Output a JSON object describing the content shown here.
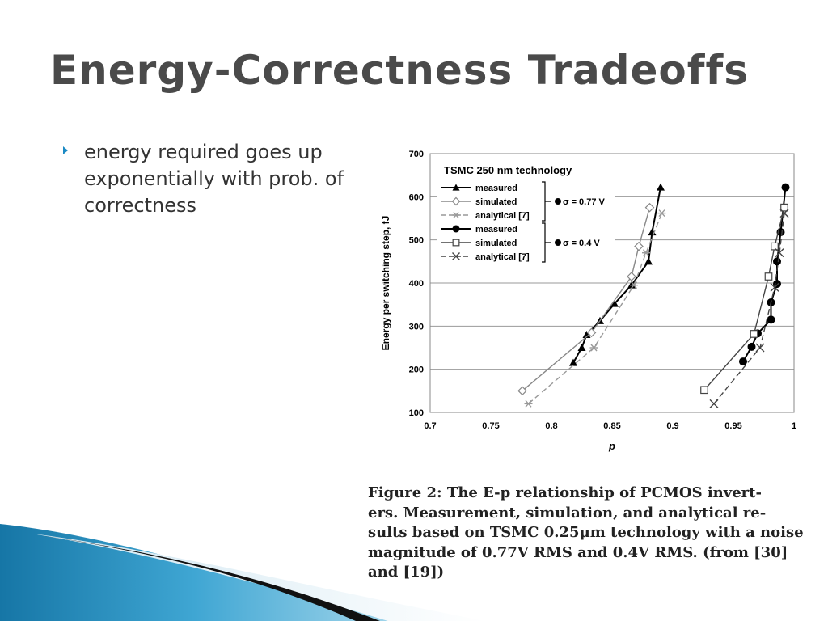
{
  "slide": {
    "title": "Energy-Correctness Tradeoffs",
    "bullet": "energy required goes up exponentially with prob. of correctness",
    "caption_lines": [
      "Figure 2:  The E-p relationship of PCMOS invert-",
      "ers.  Measurement, simulation, and analytical re-",
      "sults based on TSMC 0.25μm technology with a noise",
      "magnitude of 0.77V RMS and 0.4V RMS.  (from [30]",
      "and [19])"
    ]
  },
  "colors": {
    "title": "#4a4a4a",
    "bullet": "#1b8ac4",
    "text": "#333333"
  },
  "chart_data": {
    "type": "line",
    "title": "TSMC 250 nm technology",
    "xlabel": "p",
    "ylabel": "Energy per switching step, fJ",
    "xlim": [
      0.7,
      1.0
    ],
    "ylim": [
      100,
      700
    ],
    "xticks": [
      "0.7",
      "0.75",
      "0.8",
      "0.85",
      "0.9",
      "0.95",
      "1"
    ],
    "yticks": [
      "100",
      "200",
      "300",
      "400",
      "500",
      "600",
      "700"
    ],
    "grid": "horizontal",
    "legend": {
      "position": "top-left",
      "groups": [
        {
          "label": "σ = 0.77 V",
          "entries": [
            "measured",
            "simulated",
            "analytical [7]"
          ]
        },
        {
          "label": "σ = 0.4 V",
          "entries": [
            "measured",
            "simulated",
            "analytical [7]"
          ]
        }
      ]
    },
    "series": [
      {
        "name": "measured",
        "group": "σ = 0.77 V",
        "marker": "triangle",
        "line": "solid",
        "color": "#000000",
        "points": [
          [
            0.818,
            215
          ],
          [
            0.825,
            250
          ],
          [
            0.829,
            280
          ],
          [
            0.84,
            312
          ],
          [
            0.852,
            352
          ],
          [
            0.866,
            395
          ],
          [
            0.88,
            450
          ],
          [
            0.883,
            518
          ],
          [
            0.89,
            622
          ]
        ]
      },
      {
        "name": "simulated",
        "group": "σ = 0.77 V",
        "marker": "diamond",
        "line": "solid",
        "color": "#888888",
        "points": [
          [
            0.776,
            150
          ],
          [
            0.833,
            285
          ],
          [
            0.866,
            415
          ],
          [
            0.872,
            485
          ],
          [
            0.881,
            575
          ]
        ]
      },
      {
        "name": "analytical [7]",
        "group": "σ = 0.77 V",
        "marker": "asterisk",
        "line": "dashed",
        "color": "#999999",
        "points": [
          [
            0.781,
            120
          ],
          [
            0.835,
            250
          ],
          [
            0.868,
            395
          ],
          [
            0.878,
            470
          ],
          [
            0.891,
            562
          ]
        ]
      },
      {
        "name": "measured",
        "group": "σ = 0.4 V",
        "marker": "circle",
        "line": "solid",
        "color": "#000000",
        "points": [
          [
            0.958,
            218
          ],
          [
            0.965,
            252
          ],
          [
            0.97,
            283
          ],
          [
            0.981,
            315
          ],
          [
            0.981,
            355
          ],
          [
            0.986,
            398
          ],
          [
            0.986,
            450
          ],
          [
            0.989,
            518
          ],
          [
            0.993,
            622
          ]
        ]
      },
      {
        "name": "simulated",
        "group": "σ = 0.4 V",
        "marker": "square",
        "line": "solid",
        "color": "#444444",
        "points": [
          [
            0.926,
            152
          ],
          [
            0.967,
            282
          ],
          [
            0.979,
            415
          ],
          [
            0.984,
            485
          ],
          [
            0.992,
            575
          ]
        ]
      },
      {
        "name": "analytical [7]",
        "group": "σ = 0.4 V",
        "marker": "x",
        "line": "dashed",
        "color": "#444444",
        "points": [
          [
            0.934,
            120
          ],
          [
            0.972,
            250
          ],
          [
            0.984,
            390
          ],
          [
            0.988,
            470
          ],
          [
            0.992,
            562
          ]
        ]
      }
    ]
  }
}
